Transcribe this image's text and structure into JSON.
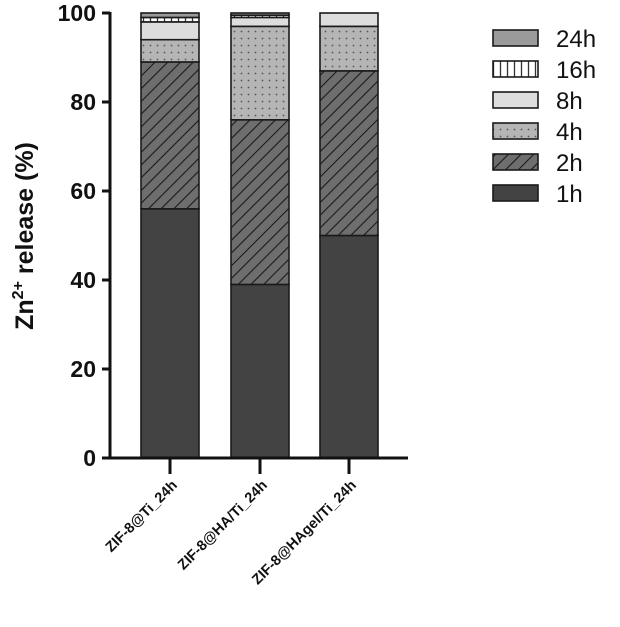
{
  "chart_data": {
    "type": "bar",
    "stacked": true,
    "categories": [
      "ZIF-8@Ti_24h",
      "ZIF-8@HA/Ti_24h",
      "ZIF-8@HAgel/Ti_24h"
    ],
    "series": [
      {
        "name": "1h",
        "values": [
          56,
          39,
          50
        ]
      },
      {
        "name": "2h",
        "values": [
          33,
          37,
          37
        ]
      },
      {
        "name": "4h",
        "values": [
          5,
          21,
          10
        ]
      },
      {
        "name": "8h",
        "values": [
          4,
          2,
          3
        ]
      },
      {
        "name": "16h",
        "values": [
          1,
          0.5,
          0
        ]
      },
      {
        "name": "24h",
        "values": [
          1,
          0.5,
          0
        ]
      }
    ],
    "ylabel_main": "Zn",
    "ylabel_sup": "2+",
    "ylabel_rest": " release (%)",
    "ylim": [
      0,
      100
    ],
    "yticks": [
      "0",
      "20",
      "40",
      "60",
      "80",
      "100"
    ],
    "legend_position": "right",
    "legend_order": [
      "24h",
      "16h",
      "8h",
      "4h",
      "2h",
      "1h"
    ],
    "series_styles": {
      "1h": {
        "fill": "#434343",
        "pattern": "solid"
      },
      "2h": {
        "fill": "#6e6e6e",
        "pattern": "diagonal-hatch"
      },
      "4h": {
        "fill": "#b5b5b5",
        "pattern": "dots"
      },
      "8h": {
        "fill": "#dddddd",
        "pattern": "solid"
      },
      "16h": {
        "fill": "#ffffff",
        "pattern": "vertical-lines"
      },
      "24h": {
        "fill": "#9a9a9a",
        "pattern": "solid"
      }
    }
  }
}
